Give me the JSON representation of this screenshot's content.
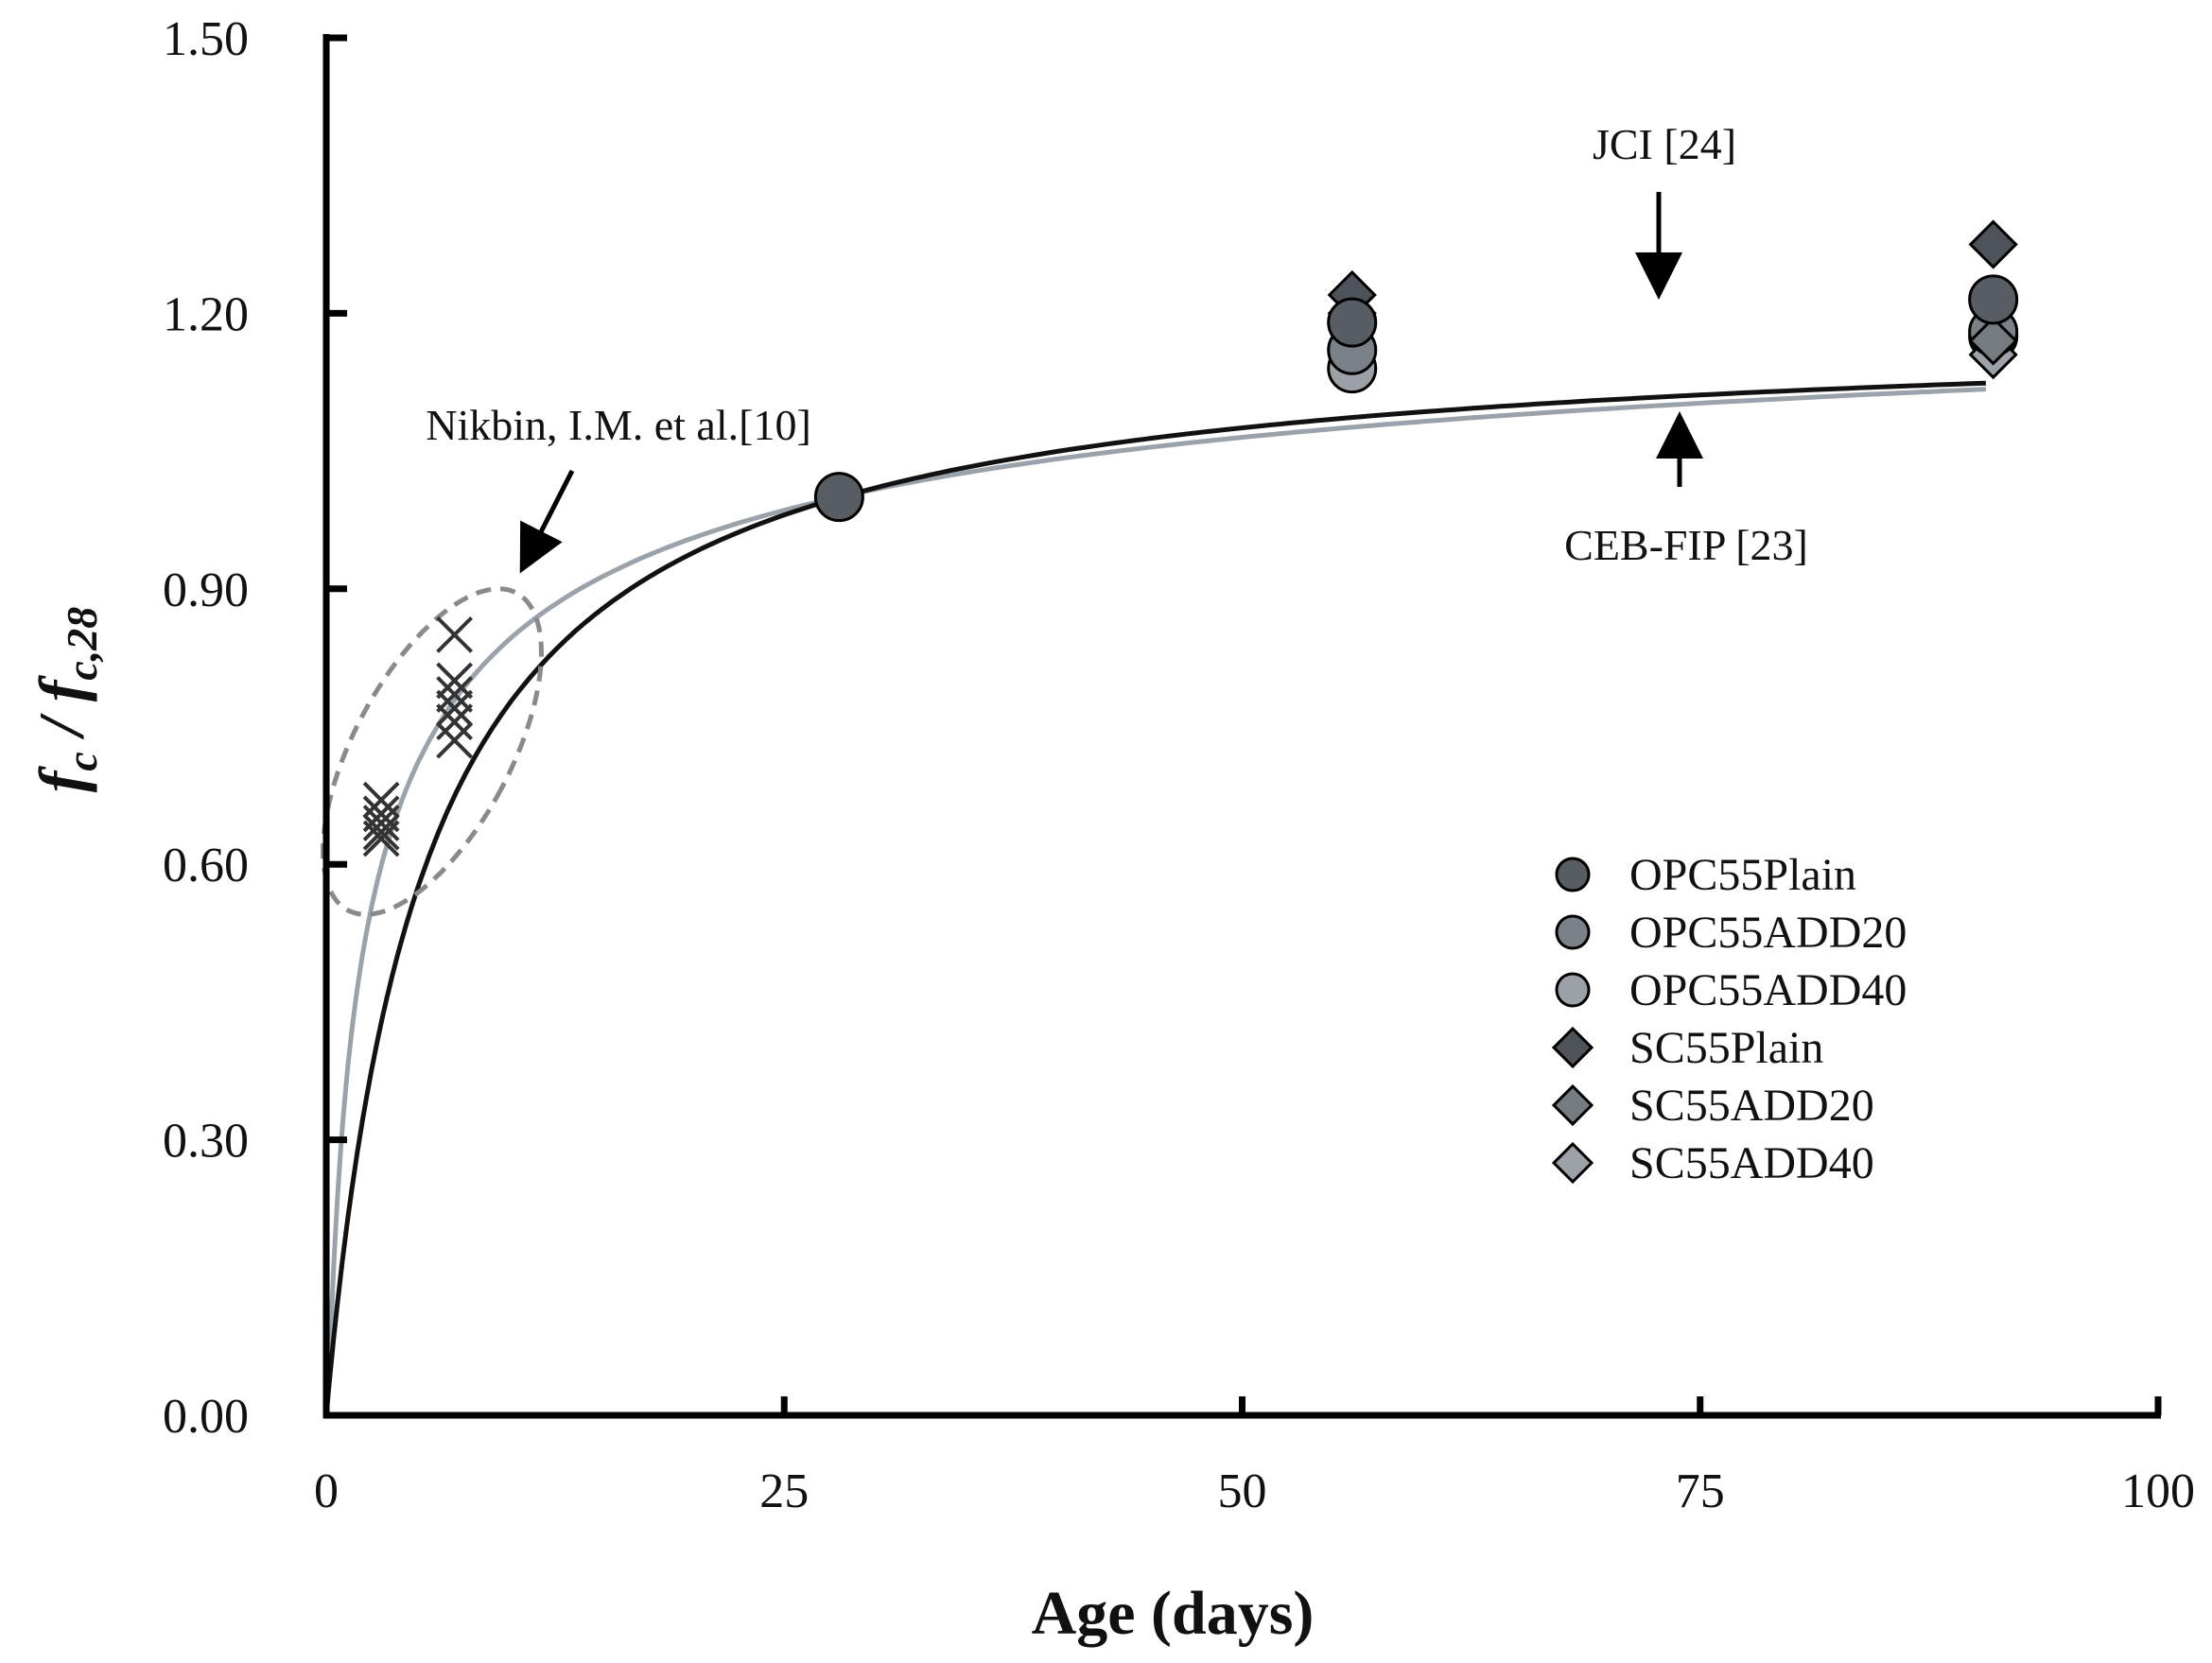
{
  "chart_data": {
    "type": "scatter",
    "title": "",
    "xlabel": "Age (days)",
    "ylabel": {
      "f1": "f",
      "sub1": "c",
      "sep": " / ",
      "f2": "f",
      "sub2": "c,28"
    },
    "xlim": [
      0,
      100
    ],
    "ylim": [
      0,
      1.5
    ],
    "xticks": [
      0,
      25,
      50,
      75,
      100
    ],
    "xtick_labels": [
      "0",
      "25",
      "50",
      "75",
      "100"
    ],
    "yticks": [
      0,
      0.3,
      0.6,
      0.9,
      1.2,
      1.5
    ],
    "ytick_labels": [
      "0.00",
      "0.30",
      "0.60",
      "0.90",
      "1.20",
      "1.50"
    ],
    "grid": false,
    "legend_position": "right-middle",
    "colors": {
      "axis": "#000000",
      "jci_curve": "#111111",
      "ceb_curve": "#9aa3ab",
      "ellipse": "#8a8a8a",
      "cross": "#333333"
    },
    "curves": [
      {
        "name": "JCI [24]",
        "model": "t/(a+b*t)",
        "a": 4.5,
        "b": 0.84
      },
      {
        "name": "CEB-FIP [23]",
        "model": "exp(s*(1-sqrt(28/t)))",
        "s": 0.25
      }
    ],
    "series": [
      {
        "name": "OPC55Plain",
        "marker": "circle",
        "color": "#575d62",
        "points": [
          [
            28,
            1.0
          ],
          [
            56,
            1.19
          ],
          [
            91,
            1.215
          ]
        ]
      },
      {
        "name": "OPC55ADD20",
        "marker": "circle",
        "color": "#7b8188",
        "points": [
          [
            56,
            1.16
          ],
          [
            91,
            1.18
          ]
        ]
      },
      {
        "name": "OPC55ADD40",
        "marker": "circle",
        "color": "#9ba1a7",
        "points": [
          [
            56,
            1.14
          ],
          [
            91,
            1.175
          ]
        ]
      },
      {
        "name": "SC55Plain",
        "marker": "diamond",
        "color": "#4d5358",
        "points": [
          [
            56,
            1.22
          ],
          [
            91,
            1.275
          ]
        ]
      },
      {
        "name": "SC55ADD20",
        "marker": "diamond",
        "color": "#757b81",
        "points": [
          [
            56,
            1.2
          ],
          [
            91,
            1.17
          ]
        ]
      },
      {
        "name": "SC55ADD40",
        "marker": "diamond",
        "color": "#9ca2a8",
        "points": [
          [
            56,
            1.16
          ],
          [
            91,
            1.155
          ]
        ]
      },
      {
        "name": "Nikbin, I.M. et al.[10]",
        "marker": "cross",
        "color": "#333333",
        "in_legend": false,
        "points": [
          [
            3,
            0.67
          ],
          [
            3,
            0.655
          ],
          [
            3,
            0.645
          ],
          [
            3,
            0.635
          ],
          [
            3,
            0.628
          ],
          [
            7,
            0.85
          ],
          [
            7,
            0.8
          ],
          [
            7,
            0.785
          ],
          [
            7,
            0.77
          ],
          [
            7,
            0.755
          ],
          [
            7,
            0.735
          ]
        ]
      }
    ],
    "annotations": [
      {
        "id": "jci",
        "text": "JCI [24]"
      },
      {
        "id": "ceb",
        "text": "CEB-FIP [23]"
      },
      {
        "id": "nikbin",
        "text": "Nikbin, I.M. et al.[10]"
      }
    ]
  }
}
